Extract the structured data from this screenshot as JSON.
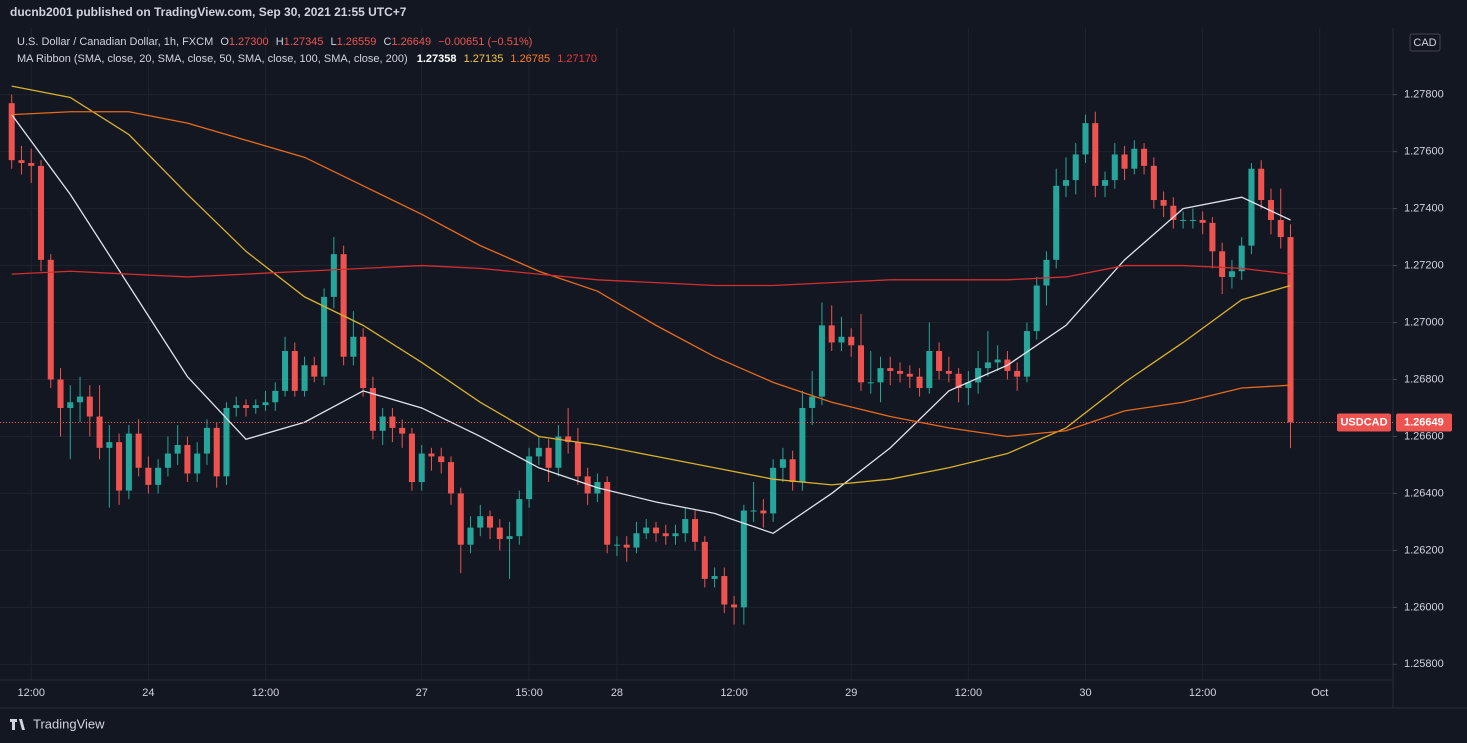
{
  "header": {
    "published": "ducnb2001 published on TradingView.com, Sep 30, 2021 21:55 UTC+7",
    "footer": "TradingView"
  },
  "legend": {
    "symbol": "U.S. Dollar / Canadian Dollar, 1h, FXCM",
    "o_label": "O",
    "o": "1.27300",
    "h_label": "H",
    "h": "1.27345",
    "l_label": "L",
    "l": "1.26559",
    "c_label": "C",
    "c": "1.26649",
    "change": "−0.00651 (−0.51%)",
    "ma_title": "MA Ribbon (SMA, close, 20, SMA, close, 50, SMA, close, 100, SMA, close, 200)",
    "ma_values": [
      "1.27358",
      "1.27135",
      "1.26785",
      "1.27170"
    ]
  },
  "chart_data": {
    "type": "candlestick",
    "symbol": "USDCAD",
    "unit": "CAD",
    "last_price_label": "1.26649",
    "up_color": "#26a69a",
    "down_color": "#ef5350",
    "open": [
      1.2777,
      1.2757,
      1.2756,
      1.2755,
      1.2722,
      1.268,
      1.267,
      1.2672,
      1.2674,
      1.2667,
      1.2656,
      1.2658,
      1.2641,
      1.2661,
      1.2649,
      1.2643,
      1.2649,
      1.2654,
      1.2657,
      1.2647,
      1.2654,
      1.2663,
      1.2646,
      1.267,
      1.2671,
      1.267,
      1.2671,
      1.2672,
      1.2676,
      1.269,
      1.2676,
      1.2685,
      1.2681,
      1.2709,
      1.2724,
      1.2688,
      1.2695,
      1.2677,
      1.2662,
      1.2667,
      1.2663,
      1.2661,
      1.2644,
      1.2654,
      1.2653,
      1.2651,
      1.264,
      1.2622,
      1.2628,
      1.2632,
      1.2628,
      1.2624,
      1.2625,
      1.2638,
      1.2653,
      1.2656,
      1.2649,
      1.266,
      1.2658,
      1.2646,
      1.264,
      1.2644,
      1.2622,
      1.2622,
      1.2621,
      1.2626,
      1.2628,
      1.2626,
      1.2625,
      1.2626,
      1.2631,
      1.2623,
      1.261,
      1.2611,
      1.2601,
      1.26,
      1.2634,
      1.2634,
      1.2633,
      1.2649,
      1.2652,
      1.2644,
      1.267,
      1.2674,
      1.2699,
      1.2693,
      1.2695,
      1.2692,
      1.2679,
      1.2679,
      1.2684,
      1.2683,
      1.2682,
      1.2681,
      1.2677,
      1.269,
      1.2683,
      1.2682,
      1.2677,
      1.2679,
      1.2684,
      1.2686,
      1.2687,
      1.2683,
      1.2681,
      1.2697,
      1.2713,
      1.2722,
      1.2748,
      1.275,
      1.2759,
      1.277,
      1.2748,
      1.275,
      1.2759,
      1.2754,
      1.2761,
      1.2755,
      1.2743,
      1.2741,
      1.2736,
      1.2736,
      1.2736,
      1.2735,
      1.2725,
      1.2716,
      1.2718,
      1.2727,
      1.2754,
      1.2743,
      1.2736,
      1.273
    ],
    "high": [
      1.278,
      1.2762,
      1.2761,
      1.2757,
      1.2724,
      1.2684,
      1.2678,
      1.2681,
      1.2678,
      1.2678,
      1.2664,
      1.2661,
      1.2664,
      1.2666,
      1.2653,
      1.2652,
      1.266,
      1.2664,
      1.266,
      1.2658,
      1.2666,
      1.2665,
      1.2672,
      1.2674,
      1.2673,
      1.2673,
      1.2676,
      1.2679,
      1.2695,
      1.2693,
      1.2688,
      1.2688,
      1.2712,
      1.273,
      1.2727,
      1.2704,
      1.2698,
      1.2681,
      1.267,
      1.267,
      1.2666,
      1.2663,
      1.2657,
      1.2656,
      1.2656,
      1.2653,
      1.2642,
      1.2632,
      1.2636,
      1.2634,
      1.2631,
      1.263,
      1.2641,
      1.2656,
      1.266,
      1.2659,
      1.2664,
      1.267,
      1.2663,
      1.2649,
      1.2647,
      1.2646,
      1.2625,
      1.2625,
      1.263,
      1.2631,
      1.263,
      1.2629,
      1.2629,
      1.2635,
      1.2634,
      1.2625,
      1.2614,
      1.2614,
      1.2604,
      1.2636,
      1.2644,
      1.2638,
      1.2652,
      1.2656,
      1.2655,
      1.2676,
      1.2683,
      1.2707,
      1.2706,
      1.2702,
      1.2698,
      1.2703,
      1.269,
      1.2688,
      1.2688,
      1.2686,
      1.2685,
      1.2684,
      1.27,
      1.2693,
      1.2688,
      1.2684,
      1.2683,
      1.269,
      1.2697,
      1.2692,
      1.269,
      1.2686,
      1.27,
      1.2716,
      1.2725,
      1.2754,
      1.2758,
      1.2763,
      1.2773,
      1.2774,
      1.2753,
      1.2763,
      1.2762,
      1.2764,
      1.2763,
      1.2758,
      1.2746,
      1.2744,
      1.2739,
      1.274,
      1.2739,
      1.2737,
      1.2728,
      1.2722,
      1.273,
      1.2756,
      1.2757,
      1.2747,
      1.2747,
      1.27345
    ],
    "low": [
      1.2754,
      1.2752,
      1.2749,
      1.2718,
      1.2677,
      1.266,
      1.2652,
      1.2665,
      1.266,
      1.2652,
      1.2635,
      1.2636,
      1.2638,
      1.2646,
      1.264,
      1.264,
      1.2646,
      1.265,
      1.2644,
      1.2644,
      1.265,
      1.2642,
      1.2643,
      1.2667,
      1.2667,
      1.2668,
      1.2669,
      1.2669,
      1.2674,
      1.2674,
      1.2674,
      1.2679,
      1.2678,
      1.2705,
      1.2685,
      1.2685,
      1.2674,
      1.2659,
      1.2657,
      1.2658,
      1.2656,
      1.2641,
      1.2641,
      1.2648,
      1.2647,
      1.2636,
      1.2612,
      1.2619,
      1.2625,
      1.2624,
      1.262,
      1.261,
      1.2622,
      1.2635,
      1.265,
      1.2644,
      1.2646,
      1.2654,
      1.2643,
      1.2636,
      1.2637,
      1.2619,
      1.2618,
      1.2616,
      1.2619,
      1.2624,
      1.2623,
      1.2622,
      1.2622,
      1.2623,
      1.262,
      1.2607,
      1.2607,
      1.2598,
      1.2594,
      1.2594,
      1.263,
      1.2628,
      1.263,
      1.2644,
      1.2641,
      1.2641,
      1.2664,
      1.2671,
      1.269,
      1.269,
      1.2688,
      1.2676,
      1.2675,
      1.2672,
      1.2678,
      1.2679,
      1.2677,
      1.2674,
      1.2675,
      1.268,
      1.2679,
      1.2672,
      1.2671,
      1.2675,
      1.2681,
      1.2683,
      1.268,
      1.2676,
      1.2679,
      1.2694,
      1.2706,
      1.2719,
      1.2744,
      1.2745,
      1.2756,
      1.2744,
      1.2744,
      1.2747,
      1.275,
      1.2752,
      1.2752,
      1.274,
      1.2737,
      1.2733,
      1.2733,
      1.2733,
      1.2731,
      1.2719,
      1.271,
      1.2712,
      1.2715,
      1.2724,
      1.274,
      1.2731,
      1.2726,
      1.26559
    ],
    "close": [
      1.2757,
      1.2756,
      1.2755,
      1.2722,
      1.268,
      1.267,
      1.2672,
      1.2674,
      1.2667,
      1.2656,
      1.2658,
      1.2641,
      1.2661,
      1.2649,
      1.2643,
      1.2649,
      1.2654,
      1.2657,
      1.2647,
      1.2654,
      1.2663,
      1.2646,
      1.267,
      1.2671,
      1.267,
      1.2671,
      1.2672,
      1.2676,
      1.269,
      1.2676,
      1.2685,
      1.2681,
      1.2709,
      1.2724,
      1.2688,
      1.2695,
      1.2677,
      1.2662,
      1.2667,
      1.2663,
      1.2661,
      1.2644,
      1.2654,
      1.2653,
      1.2651,
      1.264,
      1.2622,
      1.2628,
      1.2632,
      1.2628,
      1.2624,
      1.2625,
      1.2638,
      1.2653,
      1.2656,
      1.2649,
      1.266,
      1.2658,
      1.2646,
      1.264,
      1.2644,
      1.2622,
      1.2622,
      1.2621,
      1.2626,
      1.2628,
      1.2626,
      1.2625,
      1.2626,
      1.2631,
      1.2623,
      1.261,
      1.2611,
      1.2601,
      1.26,
      1.2634,
      1.2634,
      1.2633,
      1.2649,
      1.2652,
      1.2644,
      1.267,
      1.2674,
      1.2699,
      1.2693,
      1.2695,
      1.2692,
      1.2679,
      1.2679,
      1.2684,
      1.2683,
      1.2682,
      1.2681,
      1.2677,
      1.269,
      1.2683,
      1.2682,
      1.2677,
      1.2679,
      1.2684,
      1.2686,
      1.2687,
      1.2683,
      1.2681,
      1.2697,
      1.2713,
      1.2722,
      1.2748,
      1.275,
      1.2759,
      1.277,
      1.2748,
      1.275,
      1.2759,
      1.2754,
      1.2761,
      1.2755,
      1.2743,
      1.2741,
      1.2736,
      1.2736,
      1.2736,
      1.2735,
      1.2725,
      1.2716,
      1.2718,
      1.2727,
      1.2754,
      1.2743,
      1.2736,
      1.273,
      1.26649
    ],
    "series": [
      {
        "name": "SMA 20",
        "color": "#e0e3eb",
        "x": [
          0,
          6,
          12,
          18,
          24,
          30,
          36,
          42,
          48,
          54,
          60,
          66,
          72,
          78,
          84,
          90,
          96,
          102,
          108,
          114,
          120,
          126,
          131
        ],
        "values": [
          1.2773,
          1.2745,
          1.2713,
          1.2681,
          1.2659,
          1.2665,
          1.2676,
          1.267,
          1.266,
          1.2649,
          1.2642,
          1.2637,
          1.2633,
          1.2626,
          1.264,
          1.2656,
          1.2676,
          1.2685,
          1.2699,
          1.2722,
          1.274,
          1.2744,
          1.2736
        ]
      },
      {
        "name": "SMA 50",
        "color": "#d9b12c",
        "x": [
          0,
          6,
          12,
          18,
          24,
          30,
          36,
          42,
          48,
          54,
          60,
          66,
          72,
          78,
          84,
          90,
          96,
          102,
          108,
          114,
          120,
          126,
          131
        ],
        "values": [
          1.2783,
          1.2779,
          1.2766,
          1.2745,
          1.2725,
          1.2709,
          1.2699,
          1.2686,
          1.2672,
          1.266,
          1.2657,
          1.2653,
          1.2649,
          1.2645,
          1.2643,
          1.2645,
          1.2649,
          1.2654,
          1.2663,
          1.2679,
          1.2693,
          1.2708,
          1.2713
        ]
      },
      {
        "name": "SMA 100",
        "color": "#e86a1a",
        "x": [
          0,
          6,
          12,
          18,
          24,
          30,
          36,
          42,
          48,
          54,
          60,
          66,
          72,
          78,
          84,
          90,
          96,
          102,
          108,
          114,
          120,
          126,
          131
        ],
        "values": [
          1.2773,
          1.2774,
          1.2774,
          1.277,
          1.2764,
          1.2758,
          1.2748,
          1.2738,
          1.2727,
          1.2718,
          1.2711,
          1.2699,
          1.2688,
          1.2679,
          1.2672,
          1.2667,
          1.2663,
          1.266,
          1.2662,
          1.2669,
          1.2672,
          1.2677,
          1.2678
        ]
      },
      {
        "name": "SMA 200",
        "color": "#d32f2f",
        "x": [
          0,
          6,
          12,
          18,
          24,
          30,
          36,
          42,
          48,
          54,
          60,
          66,
          72,
          78,
          84,
          90,
          96,
          102,
          108,
          114,
          120,
          126,
          131
        ],
        "values": [
          1.2717,
          1.2718,
          1.2717,
          1.2716,
          1.2717,
          1.2718,
          1.2719,
          1.272,
          1.2719,
          1.2717,
          1.2715,
          1.2714,
          1.2713,
          1.2713,
          1.2714,
          1.2715,
          1.2715,
          1.2715,
          1.2716,
          1.272,
          1.272,
          1.2719,
          1.2717
        ]
      }
    ],
    "xlim": [
      -1.2,
      141.5
    ],
    "xticks": [
      {
        "value": 2,
        "label": "12:00"
      },
      {
        "value": 14,
        "label": "24"
      },
      {
        "value": 26,
        "label": "12:00"
      },
      {
        "value": 42,
        "label": "27"
      },
      {
        "value": 53,
        "label": "15:00"
      },
      {
        "value": 62,
        "label": "28"
      },
      {
        "value": 74,
        "label": "12:00"
      },
      {
        "value": 86,
        "label": "29"
      },
      {
        "value": 98,
        "label": "12:00"
      },
      {
        "value": 110,
        "label": "30"
      },
      {
        "value": 122,
        "label": "12:00"
      },
      {
        "value": 134,
        "label": "Oct"
      }
    ],
    "ylim": [
      1.25745,
      1.28034
    ],
    "yticks": [
      {
        "value": 1.258,
        "label": "1.25800"
      },
      {
        "value": 1.26,
        "label": "1.26000"
      },
      {
        "value": 1.262,
        "label": "1.26200"
      },
      {
        "value": 1.264,
        "label": "1.26400"
      },
      {
        "value": 1.266,
        "label": "1.26600"
      },
      {
        "value": 1.268,
        "label": "1.26800"
      },
      {
        "value": 1.27,
        "label": "1.27000"
      },
      {
        "value": 1.272,
        "label": "1.27200"
      },
      {
        "value": 1.274,
        "label": "1.27400"
      },
      {
        "value": 1.276,
        "label": "1.27600"
      },
      {
        "value": 1.278,
        "label": "1.27800"
      }
    ],
    "grid": true
  }
}
